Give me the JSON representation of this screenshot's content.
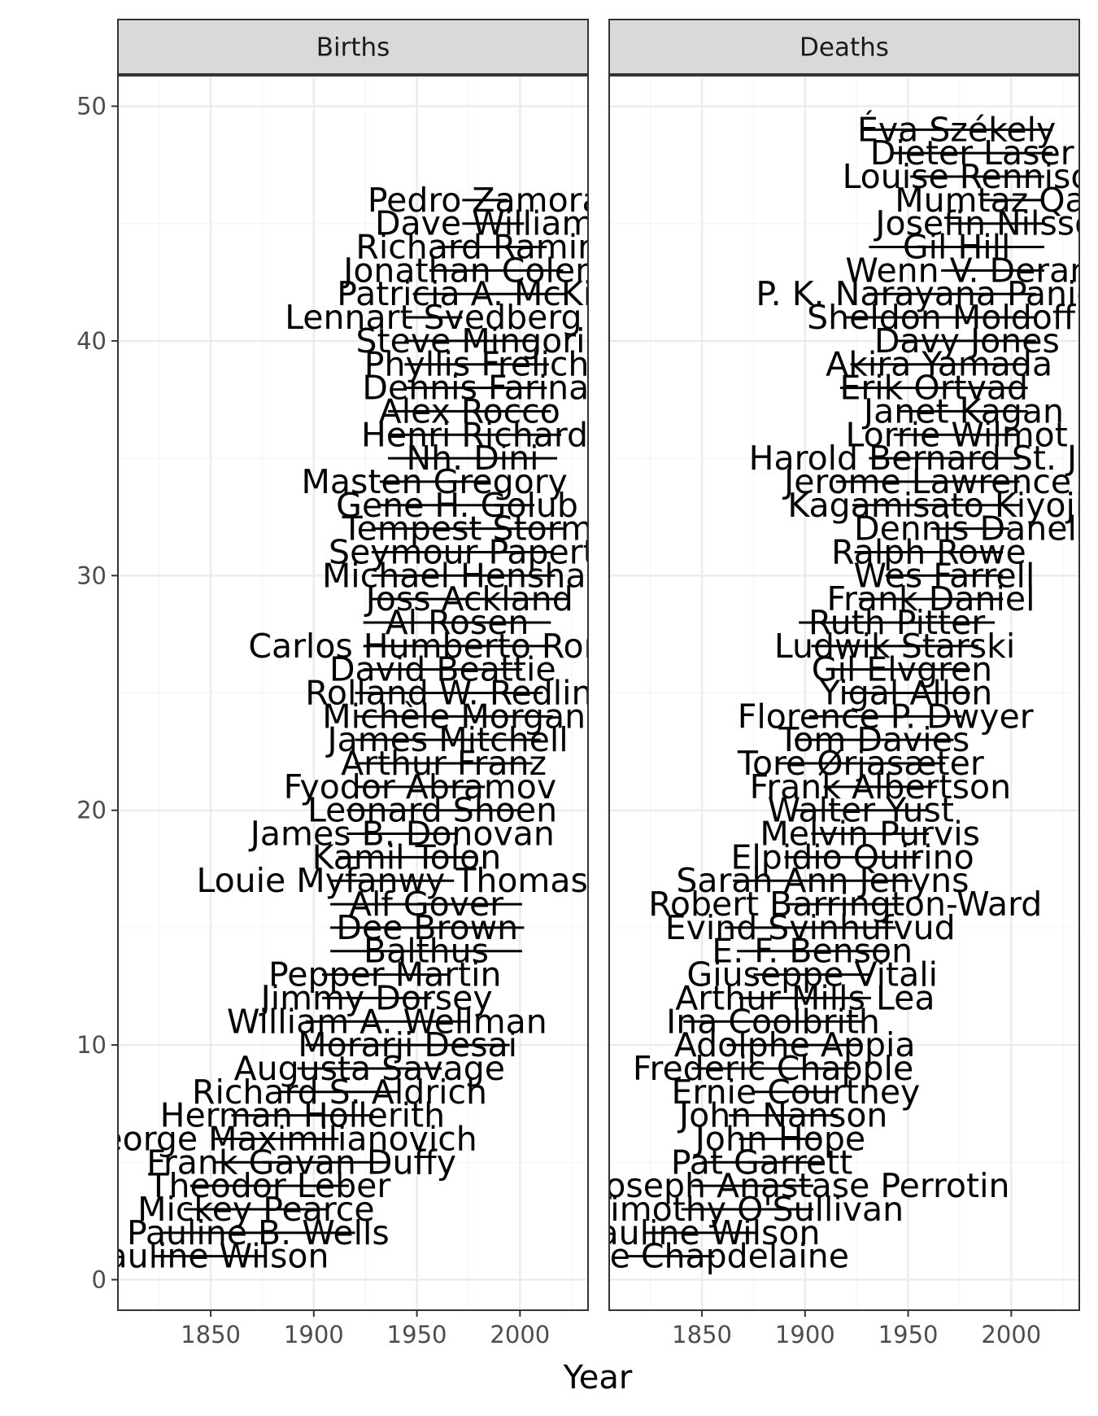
{
  "chart_data": {
    "type": "range",
    "xlabel": "Year",
    "ylabel": "",
    "xlim": [
      1805,
      2033
    ],
    "ylim": [
      -1.3,
      51.3
    ],
    "x_ticks": [
      1850,
      1900,
      1950,
      2000
    ],
    "y_ticks": [
      0,
      10,
      20,
      30,
      40,
      50
    ],
    "grid": true,
    "colors": {
      "panel_border": "#333333",
      "strip_fill": "#d9d9d9",
      "grid_major": "#ebebeb",
      "grid_minor": "#f5f5f5",
      "segment": "#000000",
      "label": "#000000"
    },
    "panels": [
      {
        "strip": "Births",
        "people": [
          {
            "y": 1,
            "name": "Pauline Wilson",
            "from": 1822,
            "to": 1876
          },
          {
            "y": 2,
            "name": "Pauline B. Wells",
            "from": 1826,
            "to": 1920
          },
          {
            "y": 3,
            "name": "Mickey Pearce",
            "from": 1837,
            "to": 1907
          },
          {
            "y": 4,
            "name": "Theodor Leber",
            "from": 1840,
            "to": 1917
          },
          {
            "y": 5,
            "name": "Frank Gavan Duffy",
            "from": 1852,
            "to": 1936
          },
          {
            "y": 6,
            "name": "George Maximilianovich",
            "from": 1852,
            "to": 1912
          },
          {
            "y": 7,
            "name": "Herman Hollerith",
            "from": 1860,
            "to": 1929
          },
          {
            "y": 8,
            "name": "Richard S. Aldrich",
            "from": 1884,
            "to": 1941
          },
          {
            "y": 9,
            "name": "Augusta Savage",
            "from": 1892,
            "to": 1962
          },
          {
            "y": 10,
            "name": "Morarji Desai",
            "from": 1896,
            "to": 1995
          },
          {
            "y": 11,
            "name": "William A. Wellman",
            "from": 1896,
            "to": 1975
          },
          {
            "y": 12,
            "name": "Jimmy Dorsey",
            "from": 1904,
            "to": 1957
          },
          {
            "y": 13,
            "name": "Pepper Martin",
            "from": 1904,
            "to": 1965
          },
          {
            "y": 14,
            "name": "Balthus",
            "from": 1908,
            "to": 2001
          },
          {
            "y": 15,
            "name": "Dee Brown",
            "from": 1908,
            "to": 2002
          },
          {
            "y": 16,
            "name": "Alf Gover",
            "from": 1908,
            "to": 2001
          },
          {
            "y": 17,
            "name": "Louie Myfanwy Thomas",
            "from": 1908,
            "to": 1968
          },
          {
            "y": 18,
            "name": "Kamil Tolon",
            "from": 1912,
            "to": 1978
          },
          {
            "y": 19,
            "name": "James B. Donovan",
            "from": 1916,
            "to": 1970
          },
          {
            "y": 20,
            "name": "Leonard Shoen",
            "from": 1916,
            "to": 1999
          },
          {
            "y": 21,
            "name": "Fyodor Abramov",
            "from": 1920,
            "to": 1983
          },
          {
            "y": 22,
            "name": "Arthur Franz",
            "from": 1920,
            "to": 2006
          },
          {
            "y": 23,
            "name": "James Mitchell",
            "from": 1920,
            "to": 2010
          },
          {
            "y": 24,
            "name": "Michèle Morgan",
            "from": 1920,
            "to": 2016
          },
          {
            "y": 25,
            "name": "Rolland W. Redlin",
            "from": 1920,
            "to": 2011
          },
          {
            "y": 26,
            "name": "David Beattie",
            "from": 1924,
            "to": 2001
          },
          {
            "y": 27,
            "name": "Carlos Humberto Romero",
            "from": 1924,
            "to": 2017
          },
          {
            "y": 28,
            "name": "Al Rosen",
            "from": 1924,
            "to": 2015
          },
          {
            "y": 29,
            "name": "Joss Ackland",
            "from": 1928,
            "to": 2023
          },
          {
            "y": 30,
            "name": "Michael Henshall",
            "from": 1928,
            "to": 2017
          },
          {
            "y": 31,
            "name": "Seymour Papert",
            "from": 1928,
            "to": 2016
          },
          {
            "y": 32,
            "name": "Tempest Storm",
            "from": 1928,
            "to": 2021
          },
          {
            "y": 33,
            "name": "Gene H. Golub",
            "from": 1932,
            "to": 2007
          },
          {
            "y": 34,
            "name": "Masten Gregory",
            "from": 1932,
            "to": 1985
          },
          {
            "y": 35,
            "name": "Nh. Dini",
            "from": 1936,
            "to": 2018
          },
          {
            "y": 36,
            "name": "Henri Richard",
            "from": 1936,
            "to": 2020
          },
          {
            "y": 37,
            "name": "Alex Rocco",
            "from": 1936,
            "to": 2015
          },
          {
            "y": 38,
            "name": "Dennis Farina",
            "from": 1944,
            "to": 2013
          },
          {
            "y": 39,
            "name": "Phyllis Frelich",
            "from": 1944,
            "to": 2014
          },
          {
            "y": 40,
            "name": "Steve Mingori",
            "from": 1944,
            "to": 2008
          },
          {
            "y": 41,
            "name": "Lennart Svedberg",
            "from": 1944,
            "to": 1972
          },
          {
            "y": 42,
            "name": "Patricia A. McKillip",
            "from": 1948,
            "to": 2022
          },
          {
            "y": 43,
            "name": "Jonathan Coleman",
            "from": 1956,
            "to": 2021
          },
          {
            "y": 44,
            "name": "Richard Ramirez",
            "from": 1960,
            "to": 2013
          },
          {
            "y": 45,
            "name": "Dave Williams",
            "from": 1972,
            "to": 2002
          },
          {
            "y": 46,
            "name": "Pedro Zamora",
            "from": 1972,
            "to": 1994
          }
        ]
      },
      {
        "strip": "Deaths",
        "people": [
          {
            "y": 1,
            "name": "Auguste Chapdelaine",
            "from": 1814,
            "to": 1856
          },
          {
            "y": 2,
            "name": "Pauline Wilson",
            "from": 1822,
            "to": 1876
          },
          {
            "y": 3,
            "name": "Timothy O'Sullivan",
            "from": 1840,
            "to": 1904
          },
          {
            "y": 4,
            "name": "Henri Joseph Anastase Perrotin",
            "from": 1845,
            "to": 1904
          },
          {
            "y": 5,
            "name": "Pat Garrett",
            "from": 1850,
            "to": 1908
          },
          {
            "y": 6,
            "name": "John Hope",
            "from": 1868,
            "to": 1908
          },
          {
            "y": 7,
            "name": "John Nanson",
            "from": 1863,
            "to": 1916
          },
          {
            "y": 8,
            "name": "Ernie Courtney",
            "from": 1875,
            "to": 1916
          },
          {
            "y": 9,
            "name": "Frederic Chapple",
            "from": 1845,
            "to": 1924
          },
          {
            "y": 10,
            "name": "Adolphe Appia",
            "from": 1862,
            "to": 1928
          },
          {
            "y": 11,
            "name": "Ina Coolbrith",
            "from": 1841,
            "to": 1928
          },
          {
            "y": 12,
            "name": "Arthur Mills Lea",
            "from": 1868,
            "to": 1932
          },
          {
            "y": 13,
            "name": "Giuseppe Vitali",
            "from": 1875,
            "to": 1932
          },
          {
            "y": 14,
            "name": "E. F. Benson",
            "from": 1867,
            "to": 1940
          },
          {
            "y": 15,
            "name": "Evind Svinhufvud",
            "from": 1861,
            "to": 1944
          },
          {
            "y": 16,
            "name": "Robert Barrington-Ward",
            "from": 1891,
            "to": 1948
          },
          {
            "y": 17,
            "name": "Sarah Ann Jenyns",
            "from": 1865,
            "to": 1952
          },
          {
            "y": 18,
            "name": "Elpidio Quirino",
            "from": 1890,
            "to": 1956
          },
          {
            "y": 19,
            "name": "Melvin Purvis",
            "from": 1903,
            "to": 1960
          },
          {
            "y": 20,
            "name": "Walter Yust",
            "from": 1894,
            "to": 1960
          },
          {
            "y": 21,
            "name": "Frank Albertson",
            "from": 1909,
            "to": 1964
          },
          {
            "y": 22,
            "name": "Tore Ørjasæter",
            "from": 1886,
            "to": 1968
          },
          {
            "y": 23,
            "name": "Tom Davies",
            "from": 1895,
            "to": 1972
          },
          {
            "y": 24,
            "name": "Florence P. Dwyer",
            "from": 1902,
            "to": 1976
          },
          {
            "y": 25,
            "name": "Yigal Allon",
            "from": 1918,
            "to": 1980
          },
          {
            "y": 26,
            "name": "Gil Elvgren",
            "from": 1914,
            "to": 1980
          },
          {
            "y": 27,
            "name": "Ludwik Starski",
            "from": 1903,
            "to": 1984
          },
          {
            "y": 28,
            "name": "Ruth Pitter",
            "from": 1897,
            "to": 1992
          },
          {
            "y": 29,
            "name": "Frank Daniel",
            "from": 1926,
            "to": 1996
          },
          {
            "y": 30,
            "name": "Wes Farrell",
            "from": 1939,
            "to": 1996
          },
          {
            "y": 31,
            "name": "Ralph Rowe",
            "from": 1924,
            "to": 1996
          },
          {
            "y": 32,
            "name": "Dennis Danell",
            "from": 1961,
            "to": 1999
          },
          {
            "y": 33,
            "name": "Kagamisato Kiyoji",
            "from": 1923,
            "to": 2004
          },
          {
            "y": 34,
            "name": "Jerome Lawrence",
            "from": 1915,
            "to": 2004
          },
          {
            "y": 35,
            "name": "Harold Bernard St. John",
            "from": 1931,
            "to": 2004
          },
          {
            "y": 36,
            "name": "Lorrie Wilmot",
            "from": 1943,
            "to": 2004
          },
          {
            "y": 37,
            "name": "Janet Kagan",
            "from": 1946,
            "to": 2008
          },
          {
            "y": 38,
            "name": "Erik Ortvad",
            "from": 1917,
            "to": 2008
          },
          {
            "y": 39,
            "name": "Akira Yamada",
            "from": 1922,
            "to": 2008
          },
          {
            "y": 40,
            "name": "Davy Jones",
            "from": 1945,
            "to": 2012
          },
          {
            "y": 41,
            "name": "Sheldon Moldoff",
            "from": 1920,
            "to": 2012
          },
          {
            "y": 42,
            "name": "P. K. Narayana Panicker",
            "from": 1930,
            "to": 2012
          },
          {
            "y": 43,
            "name": "Wenn V. Deramas",
            "from": 1966,
            "to": 2016
          },
          {
            "y": 44,
            "name": "Gil Hill",
            "from": 1931,
            "to": 2016
          },
          {
            "y": 45,
            "name": "Josefin Nilsson",
            "from": 1969,
            "to": 2016
          },
          {
            "y": 46,
            "name": "Mumtaz Qadri",
            "from": 1985,
            "to": 2016
          },
          {
            "y": 47,
            "name": "Louise Rennison",
            "from": 1951,
            "to": 2016
          },
          {
            "y": 48,
            "name": "Dieter Laser",
            "from": 1942,
            "to": 2020
          },
          {
            "y": 49,
            "name": "Éva Székely",
            "from": 1927,
            "to": 2020
          }
        ]
      }
    ]
  }
}
